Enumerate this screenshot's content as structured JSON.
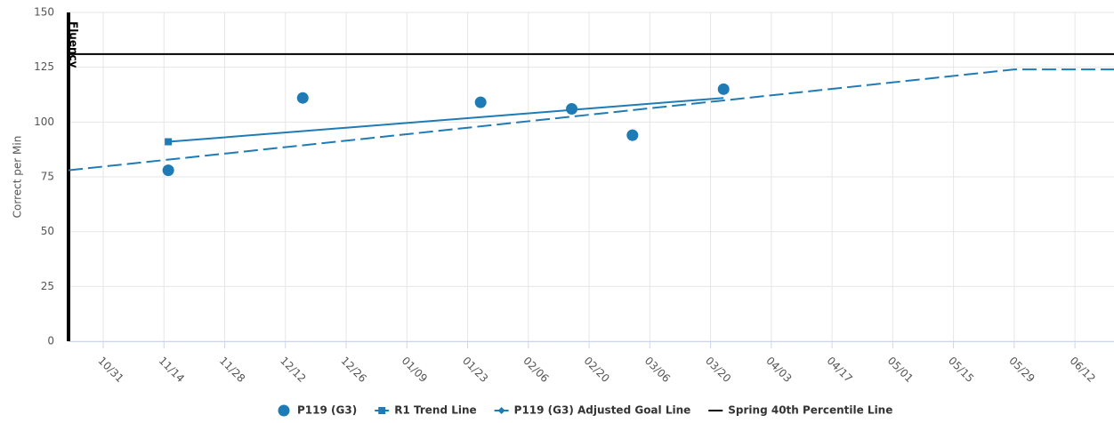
{
  "chart_data": {
    "type": "scatter",
    "ylabel": "Correct per Min",
    "annotation": "Fluency",
    "xlim": [
      "10/23",
      "06/21"
    ],
    "xticks": [
      "10/31",
      "11/14",
      "11/28",
      "12/12",
      "12/26",
      "01/09",
      "01/23",
      "02/06",
      "02/20",
      "03/06",
      "03/20",
      "04/03",
      "04/17",
      "05/01",
      "05/15",
      "05/29",
      "06/12"
    ],
    "ylim": [
      0,
      150
    ],
    "yticks": [
      0,
      25,
      50,
      75,
      100,
      125,
      150
    ],
    "grid": true,
    "legend": "bottom",
    "series": [
      {
        "name": "P119 (G3)",
        "color": "#1f7bb6",
        "type": "scatter",
        "marker": "circle",
        "x": [
          "11/15",
          "12/16",
          "01/26",
          "02/16",
          "03/02",
          "03/23"
        ],
        "values": [
          78,
          111,
          109,
          106,
          94,
          115
        ]
      },
      {
        "name": "R1 Trend Line",
        "color": "#1f7bb6",
        "type": "line",
        "marker": "square",
        "dashed": false,
        "x": [
          "11/15",
          "03/23"
        ],
        "values": [
          91,
          111
        ]
      },
      {
        "name": "P119 (G3) Adjusted Goal Line",
        "color": "#1f7bb6",
        "type": "line",
        "marker": "diamond",
        "dashed": true,
        "x": [
          "10/23",
          "05/29",
          "06/21"
        ],
        "values": [
          78,
          124,
          124
        ]
      },
      {
        "name": "Spring 40th Percentile Line",
        "color": "#000000",
        "type": "line",
        "marker": "none",
        "dashed": false,
        "x": [
          "10/23",
          "06/21"
        ],
        "values": [
          131,
          131
        ]
      }
    ]
  }
}
